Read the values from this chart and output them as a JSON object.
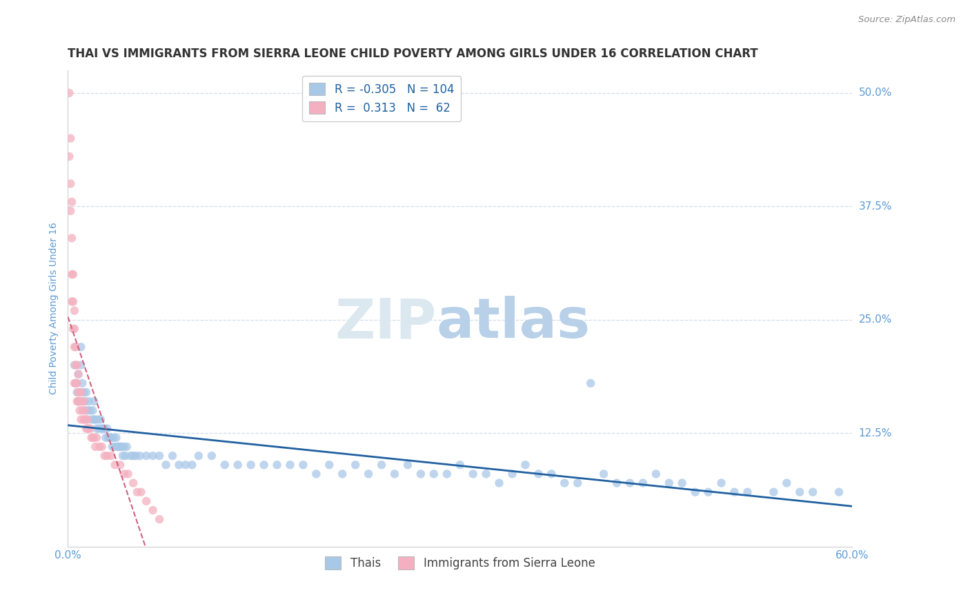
{
  "title": "THAI VS IMMIGRANTS FROM SIERRA LEONE CHILD POVERTY AMONG GIRLS UNDER 16 CORRELATION CHART",
  "source": "Source: ZipAtlas.com",
  "ylabel": "Child Poverty Among Girls Under 16",
  "x_min": 0.0,
  "x_max": 0.6,
  "y_min": 0.0,
  "y_max": 0.525,
  "yticks": [
    0.0,
    0.125,
    0.25,
    0.375,
    0.5
  ],
  "ytick_labels": [
    "",
    "12.5%",
    "25.0%",
    "37.5%",
    "50.0%"
  ],
  "xticks": [
    0.0,
    0.1,
    0.2,
    0.3,
    0.4,
    0.5,
    0.6
  ],
  "xtick_labels": [
    "0.0%",
    "",
    "",
    "",
    "",
    "",
    "60.0%"
  ],
  "blue_R": -0.305,
  "blue_N": 104,
  "pink_R": 0.313,
  "pink_N": 62,
  "blue_color": "#a8c8e8",
  "pink_color": "#f4b0c0",
  "blue_line_color": "#2060a0",
  "pink_line_color": "#d06080",
  "blue_label": "Thais",
  "pink_label": "Immigrants from Sierra Leone",
  "title_color": "#333333",
  "axis_label_color": "#5b9bd5",
  "grid_color": "#d0dce8",
  "title_fontsize": 12,
  "axis_fontsize": 10,
  "tick_fontsize": 11,
  "legend_fontsize": 12,
  "blue_scatter_x": [
    0.005,
    0.006,
    0.007,
    0.008,
    0.008,
    0.009,
    0.01,
    0.01,
    0.011,
    0.012,
    0.013,
    0.014,
    0.015,
    0.016,
    0.017,
    0.018,
    0.019,
    0.02,
    0.02,
    0.021,
    0.022,
    0.023,
    0.024,
    0.025,
    0.026,
    0.027,
    0.028,
    0.029,
    0.03,
    0.031,
    0.032,
    0.033,
    0.034,
    0.035,
    0.036,
    0.037,
    0.038,
    0.039,
    0.04,
    0.041,
    0.042,
    0.043,
    0.044,
    0.045,
    0.048,
    0.05,
    0.052,
    0.055,
    0.06,
    0.065,
    0.07,
    0.075,
    0.08,
    0.085,
    0.09,
    0.095,
    0.1,
    0.11,
    0.12,
    0.13,
    0.14,
    0.15,
    0.16,
    0.17,
    0.18,
    0.19,
    0.2,
    0.21,
    0.22,
    0.23,
    0.24,
    0.25,
    0.26,
    0.27,
    0.28,
    0.29,
    0.3,
    0.31,
    0.32,
    0.33,
    0.34,
    0.35,
    0.36,
    0.37,
    0.38,
    0.39,
    0.4,
    0.41,
    0.42,
    0.43,
    0.44,
    0.45,
    0.46,
    0.47,
    0.48,
    0.49,
    0.5,
    0.51,
    0.52,
    0.54,
    0.55,
    0.56,
    0.57,
    0.59
  ],
  "blue_scatter_y": [
    0.2,
    0.18,
    0.17,
    0.16,
    0.19,
    0.16,
    0.2,
    0.22,
    0.18,
    0.17,
    0.16,
    0.17,
    0.15,
    0.16,
    0.15,
    0.14,
    0.15,
    0.14,
    0.16,
    0.14,
    0.13,
    0.14,
    0.13,
    0.14,
    0.13,
    0.13,
    0.13,
    0.12,
    0.13,
    0.12,
    0.12,
    0.12,
    0.11,
    0.12,
    0.11,
    0.12,
    0.11,
    0.11,
    0.11,
    0.11,
    0.1,
    0.11,
    0.1,
    0.11,
    0.1,
    0.1,
    0.1,
    0.1,
    0.1,
    0.1,
    0.1,
    0.09,
    0.1,
    0.09,
    0.09,
    0.09,
    0.1,
    0.1,
    0.09,
    0.09,
    0.09,
    0.09,
    0.09,
    0.09,
    0.09,
    0.08,
    0.09,
    0.08,
    0.09,
    0.08,
    0.09,
    0.08,
    0.09,
    0.08,
    0.08,
    0.08,
    0.09,
    0.08,
    0.08,
    0.07,
    0.08,
    0.09,
    0.08,
    0.08,
    0.07,
    0.07,
    0.18,
    0.08,
    0.07,
    0.07,
    0.07,
    0.08,
    0.07,
    0.07,
    0.06,
    0.06,
    0.07,
    0.06,
    0.06,
    0.06,
    0.07,
    0.06,
    0.06,
    0.06
  ],
  "pink_scatter_x": [
    0.001,
    0.001,
    0.002,
    0.002,
    0.002,
    0.003,
    0.003,
    0.003,
    0.003,
    0.004,
    0.004,
    0.004,
    0.005,
    0.005,
    0.005,
    0.005,
    0.006,
    0.006,
    0.006,
    0.007,
    0.007,
    0.007,
    0.008,
    0.008,
    0.008,
    0.009,
    0.009,
    0.01,
    0.01,
    0.01,
    0.011,
    0.011,
    0.012,
    0.012,
    0.013,
    0.013,
    0.014,
    0.014,
    0.015,
    0.015,
    0.016,
    0.017,
    0.018,
    0.019,
    0.02,
    0.021,
    0.022,
    0.024,
    0.026,
    0.028,
    0.03,
    0.033,
    0.036,
    0.04,
    0.043,
    0.046,
    0.05,
    0.053,
    0.056,
    0.06,
    0.065,
    0.07
  ],
  "pink_scatter_y": [
    0.5,
    0.43,
    0.45,
    0.4,
    0.37,
    0.38,
    0.34,
    0.3,
    0.27,
    0.3,
    0.27,
    0.24,
    0.26,
    0.24,
    0.22,
    0.18,
    0.22,
    0.2,
    0.18,
    0.2,
    0.18,
    0.16,
    0.19,
    0.17,
    0.16,
    0.17,
    0.15,
    0.17,
    0.16,
    0.14,
    0.16,
    0.15,
    0.14,
    0.16,
    0.14,
    0.15,
    0.14,
    0.13,
    0.14,
    0.13,
    0.13,
    0.13,
    0.12,
    0.12,
    0.12,
    0.11,
    0.12,
    0.11,
    0.11,
    0.1,
    0.1,
    0.1,
    0.09,
    0.09,
    0.08,
    0.08,
    0.07,
    0.06,
    0.06,
    0.05,
    0.04,
    0.03
  ],
  "pink_line_x0": 0.0,
  "pink_line_x1": 0.05,
  "blue_line_x0": 0.0,
  "blue_line_x1": 0.6
}
